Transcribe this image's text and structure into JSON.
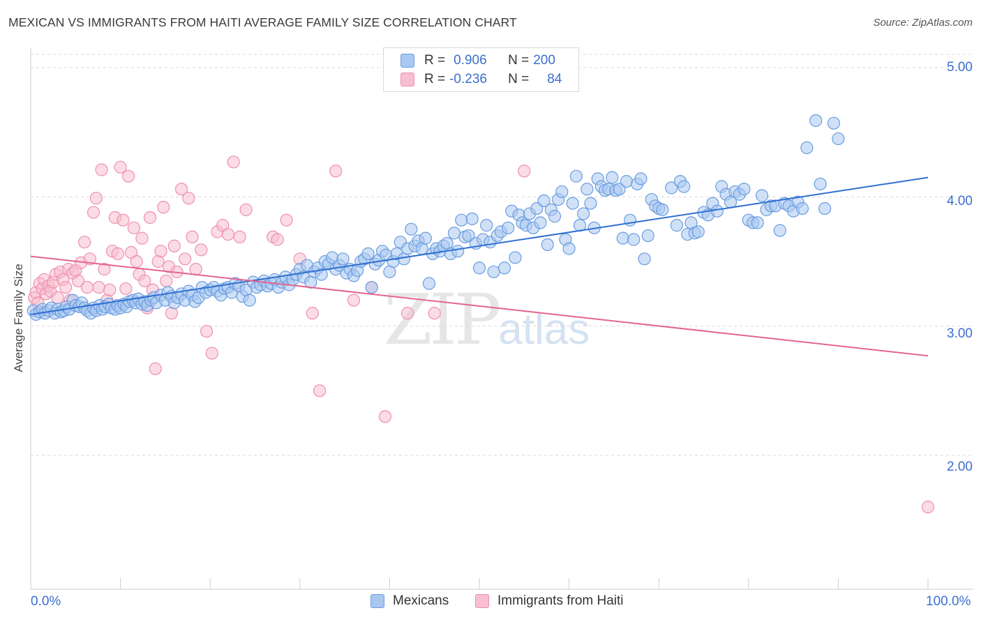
{
  "title": "MEXICAN VS IMMIGRANTS FROM HAITI AVERAGE FAMILY SIZE CORRELATION CHART",
  "source": "Source: ZipAtlas.com",
  "watermark": {
    "zip": "ZIP",
    "atlas": "atlas"
  },
  "legend_top": [
    {
      "r_label": "R =",
      "r_value": "0.906",
      "n_label": "N =",
      "n_value": "200",
      "color": "#8ab4ea"
    },
    {
      "r_label": "R =",
      "r_value": "-0.236",
      "n_label": "N =",
      "n_value": "84",
      "color": "#f3a8bf"
    }
  ],
  "legend_bottom": [
    {
      "label": "Mexicans",
      "color": "#8ab4ea"
    },
    {
      "label": "Immigrants from Haiti",
      "color": "#f3a8bf"
    }
  ],
  "colors": {
    "blue_fill": "#a9c8f0",
    "blue_stroke": "#6a9ce0",
    "blue_line": "#2f6fd0",
    "pink_fill": "#f7bfd0",
    "pink_stroke": "#ee8fae",
    "pink_line": "#e4648f",
    "grid": "#d9d9d9",
    "axis_text": "#3b6fcf"
  },
  "chart_data": {
    "type": "scatter",
    "title": "MEXICAN VS IMMIGRANTS FROM HAITI AVERAGE FAMILY SIZE CORRELATION CHART",
    "xlabel": "",
    "ylabel": "Average Family Size",
    "x_tick_labels": [
      "0.0%",
      "100.0%"
    ],
    "y_ticks": [
      2.0,
      3.0,
      4.0,
      5.0
    ],
    "y_tick_labels": [
      "2.00",
      "3.00",
      "4.00",
      "5.00"
    ],
    "xlim": [
      0,
      100
    ],
    "ylim": [
      1.05,
      5.1
    ],
    "grid": true,
    "legend_position": "bottom",
    "series": [
      {
        "name": "Mexicans",
        "trendline": {
          "x": [
            0,
            100
          ],
          "y": [
            3.09,
            4.15
          ]
        },
        "points": [
          [
            0.3,
            3.12
          ],
          [
            0.6,
            3.09
          ],
          [
            1,
            3.11
          ],
          [
            1.3,
            3.13
          ],
          [
            1.6,
            3.1
          ],
          [
            2,
            3.12
          ],
          [
            2.3,
            3.14
          ],
          [
            2.7,
            3.1
          ],
          [
            3,
            3.13
          ],
          [
            3.4,
            3.11
          ],
          [
            3.7,
            3.12
          ],
          [
            4,
            3.15
          ],
          [
            4.3,
            3.13
          ],
          [
            4.7,
            3.2
          ],
          [
            5,
            3.16
          ],
          [
            5.4,
            3.15
          ],
          [
            5.7,
            3.18
          ],
          [
            6,
            3.14
          ],
          [
            6.3,
            3.12
          ],
          [
            6.7,
            3.1
          ],
          [
            7,
            3.14
          ],
          [
            7.3,
            3.12
          ],
          [
            7.7,
            3.16
          ],
          [
            8,
            3.13
          ],
          [
            8.3,
            3.15
          ],
          [
            8.7,
            3.17
          ],
          [
            9,
            3.14
          ],
          [
            9.4,
            3.13
          ],
          [
            9.7,
            3.16
          ],
          [
            10,
            3.14
          ],
          [
            10.4,
            3.17
          ],
          [
            10.7,
            3.15
          ],
          [
            11,
            3.19
          ],
          [
            11.4,
            3.2
          ],
          [
            11.7,
            3.18
          ],
          [
            12,
            3.21
          ],
          [
            12.4,
            3.17
          ],
          [
            12.7,
            3.19
          ],
          [
            13,
            3.16
          ],
          [
            13.4,
            3.2
          ],
          [
            13.7,
            3.22
          ],
          [
            14,
            3.18
          ],
          [
            14.5,
            3.24
          ],
          [
            15,
            3.2
          ],
          [
            15.3,
            3.26
          ],
          [
            15.7,
            3.23
          ],
          [
            16,
            3.18
          ],
          [
            16.4,
            3.22
          ],
          [
            16.8,
            3.25
          ],
          [
            17.2,
            3.2
          ],
          [
            17.6,
            3.27
          ],
          [
            18,
            3.24
          ],
          [
            18.3,
            3.19
          ],
          [
            18.7,
            3.22
          ],
          [
            19.1,
            3.3
          ],
          [
            19.5,
            3.26
          ],
          [
            20,
            3.28
          ],
          [
            20.4,
            3.3
          ],
          [
            20.8,
            3.27
          ],
          [
            21.2,
            3.24
          ],
          [
            21.6,
            3.29
          ],
          [
            22,
            3.3
          ],
          [
            22.4,
            3.26
          ],
          [
            22.8,
            3.33
          ],
          [
            23.2,
            3.31
          ],
          [
            23.6,
            3.23
          ],
          [
            24,
            3.28
          ],
          [
            24.4,
            3.2
          ],
          [
            24.8,
            3.34
          ],
          [
            25.2,
            3.3
          ],
          [
            25.6,
            3.32
          ],
          [
            26,
            3.35
          ],
          [
            26.4,
            3.31
          ],
          [
            26.8,
            3.33
          ],
          [
            27.2,
            3.36
          ],
          [
            27.6,
            3.3
          ],
          [
            28,
            3.34
          ],
          [
            28.4,
            3.38
          ],
          [
            28.8,
            3.32
          ],
          [
            29.2,
            3.36
          ],
          [
            29.6,
            3.4
          ],
          [
            30,
            3.44
          ],
          [
            30.4,
            3.38
          ],
          [
            30.8,
            3.47
          ],
          [
            31.2,
            3.34
          ],
          [
            31.6,
            3.42
          ],
          [
            32,
            3.45
          ],
          [
            32.4,
            3.4
          ],
          [
            32.8,
            3.5
          ],
          [
            33.2,
            3.48
          ],
          [
            33.6,
            3.53
          ],
          [
            34,
            3.44
          ],
          [
            34.4,
            3.47
          ],
          [
            34.8,
            3.52
          ],
          [
            35.2,
            3.41
          ],
          [
            35.6,
            3.44
          ],
          [
            36,
            3.39
          ],
          [
            36.4,
            3.43
          ],
          [
            36.8,
            3.5
          ],
          [
            37.2,
            3.52
          ],
          [
            37.6,
            3.56
          ],
          [
            38,
            3.3
          ],
          [
            38.4,
            3.48
          ],
          [
            38.8,
            3.51
          ],
          [
            39.2,
            3.58
          ],
          [
            39.6,
            3.55
          ],
          [
            40,
            3.42
          ],
          [
            40.4,
            3.5
          ],
          [
            40.8,
            3.56
          ],
          [
            41.2,
            3.65
          ],
          [
            41.6,
            3.52
          ],
          [
            42,
            3.6
          ],
          [
            42.4,
            3.75
          ],
          [
            42.8,
            3.62
          ],
          [
            43.2,
            3.66
          ],
          [
            43.6,
            3.6
          ],
          [
            44,
            3.68
          ],
          [
            44.4,
            3.33
          ],
          [
            44.8,
            3.56
          ],
          [
            45.2,
            3.6
          ],
          [
            45.6,
            3.58
          ],
          [
            46,
            3.62
          ],
          [
            46.4,
            3.64
          ],
          [
            46.8,
            3.56
          ],
          [
            47.2,
            3.72
          ],
          [
            47.6,
            3.58
          ],
          [
            48,
            3.82
          ],
          [
            48.4,
            3.69
          ],
          [
            48.8,
            3.7
          ],
          [
            49.2,
            3.83
          ],
          [
            49.6,
            3.64
          ],
          [
            50,
            3.45
          ],
          [
            50.4,
            3.67
          ],
          [
            50.8,
            3.78
          ],
          [
            51.2,
            3.65
          ],
          [
            51.6,
            3.42
          ],
          [
            52,
            3.7
          ],
          [
            52.4,
            3.73
          ],
          [
            52.8,
            3.45
          ],
          [
            53.2,
            3.76
          ],
          [
            53.6,
            3.89
          ],
          [
            54,
            3.53
          ],
          [
            54.4,
            3.86
          ],
          [
            54.8,
            3.8
          ],
          [
            55.2,
            3.78
          ],
          [
            55.6,
            3.87
          ],
          [
            56,
            3.76
          ],
          [
            56.4,
            3.91
          ],
          [
            56.8,
            3.8
          ],
          [
            57.2,
            3.97
          ],
          [
            57.6,
            3.63
          ],
          [
            58,
            3.9
          ],
          [
            58.4,
            3.85
          ],
          [
            58.8,
            3.98
          ],
          [
            59.2,
            4.04
          ],
          [
            59.6,
            3.67
          ],
          [
            60,
            3.6
          ],
          [
            60.4,
            3.95
          ],
          [
            60.8,
            4.16
          ],
          [
            61.2,
            3.78
          ],
          [
            61.6,
            3.87
          ],
          [
            62,
            4.06
          ],
          [
            62.4,
            3.95
          ],
          [
            62.8,
            3.76
          ],
          [
            63.2,
            4.14
          ],
          [
            63.6,
            4.08
          ],
          [
            64,
            4.05
          ],
          [
            64.4,
            4.06
          ],
          [
            64.8,
            4.15
          ],
          [
            65.2,
            4.05
          ],
          [
            65.6,
            4.06
          ],
          [
            66,
            3.68
          ],
          [
            66.4,
            4.12
          ],
          [
            66.8,
            3.82
          ],
          [
            67.2,
            3.67
          ],
          [
            67.6,
            4.1
          ],
          [
            68,
            4.14
          ],
          [
            68.4,
            3.52
          ],
          [
            68.8,
            3.7
          ],
          [
            69.2,
            3.98
          ],
          [
            69.6,
            3.93
          ],
          [
            70,
            3.91
          ],
          [
            70.4,
            3.9
          ],
          [
            71.4,
            4.07
          ],
          [
            72,
            3.78
          ],
          [
            72.4,
            4.12
          ],
          [
            72.8,
            4.08
          ],
          [
            73.2,
            3.71
          ],
          [
            73.6,
            3.8
          ],
          [
            74,
            3.72
          ],
          [
            74.4,
            3.73
          ],
          [
            75,
            3.88
          ],
          [
            75.5,
            3.86
          ],
          [
            76,
            3.95
          ],
          [
            76.5,
            3.89
          ],
          [
            77,
            4.08
          ],
          [
            77.5,
            4.02
          ],
          [
            78,
            3.96
          ],
          [
            78.5,
            4.04
          ],
          [
            79,
            4.02
          ],
          [
            79.5,
            4.06
          ],
          [
            80,
            3.82
          ],
          [
            80.5,
            3.8
          ],
          [
            81,
            3.8
          ],
          [
            81.5,
            4.01
          ],
          [
            82,
            3.9
          ],
          [
            82.5,
            3.93
          ],
          [
            83,
            3.93
          ],
          [
            83.5,
            3.74
          ],
          [
            84,
            3.95
          ],
          [
            84.5,
            3.93
          ],
          [
            85,
            3.89
          ],
          [
            85.5,
            3.96
          ],
          [
            86,
            3.91
          ],
          [
            86.5,
            4.38
          ],
          [
            87.5,
            4.59
          ],
          [
            88,
            4.1
          ],
          [
            88.5,
            3.91
          ],
          [
            89.5,
            4.57
          ],
          [
            90,
            4.45
          ]
        ]
      },
      {
        "name": "Immigrants from Haiti",
        "trendline": {
          "x": [
            0,
            100
          ],
          "y": [
            3.54,
            2.77
          ]
        },
        "points": [
          [
            0.4,
            3.22
          ],
          [
            0.6,
            3.26
          ],
          [
            0.8,
            3.18
          ],
          [
            1,
            3.33
          ],
          [
            1.3,
            3.29
          ],
          [
            1.5,
            3.36
          ],
          [
            1.7,
            3.25
          ],
          [
            2,
            3.31
          ],
          [
            2.2,
            3.27
          ],
          [
            2.5,
            3.34
          ],
          [
            2.8,
            3.4
          ],
          [
            3,
            3.22
          ],
          [
            3.3,
            3.42
          ],
          [
            3.6,
            3.36
          ],
          [
            3.9,
            3.3
          ],
          [
            4.2,
            3.44
          ],
          [
            4.4,
            3.2
          ],
          [
            4.7,
            3.41
          ],
          [
            5,
            3.43
          ],
          [
            5.3,
            3.35
          ],
          [
            5.6,
            3.49
          ],
          [
            6,
            3.65
          ],
          [
            6.3,
            3.3
          ],
          [
            6.6,
            3.52
          ],
          [
            7,
            3.88
          ],
          [
            7.3,
            3.99
          ],
          [
            7.6,
            3.3
          ],
          [
            7.9,
            4.21
          ],
          [
            8.2,
            3.44
          ],
          [
            8.5,
            3.2
          ],
          [
            8.8,
            3.28
          ],
          [
            9.1,
            3.58
          ],
          [
            9.4,
            3.84
          ],
          [
            9.7,
            3.56
          ],
          [
            10,
            4.23
          ],
          [
            10.3,
            3.82
          ],
          [
            10.6,
            3.29
          ],
          [
            10.9,
            4.16
          ],
          [
            11.2,
            3.57
          ],
          [
            11.5,
            3.76
          ],
          [
            11.8,
            3.5
          ],
          [
            12.1,
            3.4
          ],
          [
            12.4,
            3.68
          ],
          [
            12.7,
            3.35
          ],
          [
            13,
            3.14
          ],
          [
            13.3,
            3.84
          ],
          [
            13.6,
            3.28
          ],
          [
            13.9,
            2.67
          ],
          [
            14.2,
            3.5
          ],
          [
            14.5,
            3.58
          ],
          [
            14.8,
            3.92
          ],
          [
            15.1,
            3.35
          ],
          [
            15.4,
            3.46
          ],
          [
            15.7,
            3.1
          ],
          [
            16,
            3.62
          ],
          [
            16.3,
            3.42
          ],
          [
            16.8,
            4.06
          ],
          [
            17.2,
            3.52
          ],
          [
            17.6,
            3.99
          ],
          [
            18,
            3.69
          ],
          [
            18.4,
            3.44
          ],
          [
            19,
            3.59
          ],
          [
            19.6,
            2.96
          ],
          [
            20.2,
            2.79
          ],
          [
            20.8,
            3.73
          ],
          [
            21.4,
            3.78
          ],
          [
            22,
            3.71
          ],
          [
            22.6,
            4.27
          ],
          [
            23.3,
            3.69
          ],
          [
            24,
            3.9
          ],
          [
            27,
            3.69
          ],
          [
            27.5,
            3.67
          ],
          [
            28.5,
            3.82
          ],
          [
            30,
            3.52
          ],
          [
            31.4,
            3.1
          ],
          [
            32.2,
            2.5
          ],
          [
            34,
            4.2
          ],
          [
            36,
            3.2
          ],
          [
            38,
            3.3
          ],
          [
            39.5,
            2.3
          ],
          [
            42,
            3.1
          ],
          [
            45,
            3.1
          ],
          [
            55,
            4.2
          ],
          [
            100,
            1.6
          ]
        ]
      }
    ]
  }
}
